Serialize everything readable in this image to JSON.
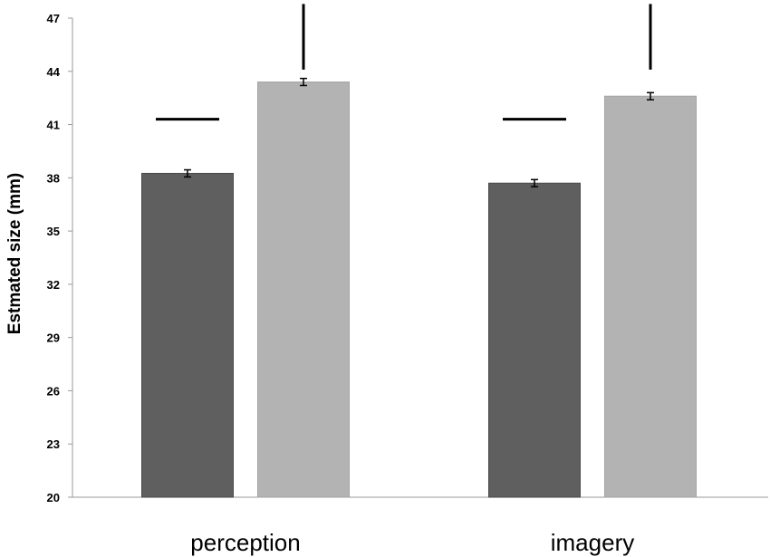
{
  "chart_data": {
    "type": "bar",
    "title": "",
    "xlabel": "",
    "ylabel": "Estmated size (mm)",
    "ylim": [
      20,
      47
    ],
    "yticks": [
      20,
      23,
      26,
      29,
      32,
      35,
      38,
      41,
      44,
      47
    ],
    "categories": [
      "perception",
      "imagery"
    ],
    "series": [
      {
        "values": [
          38.25,
          37.7
        ],
        "errors": [
          0.2,
          0.2
        ],
        "color": "#5f5f5f"
      },
      {
        "values": [
          43.4,
          42.6
        ],
        "errors": [
          0.2,
          0.2
        ],
        "color": "#b3b3b3"
      }
    ],
    "grid": false,
    "legend": "none",
    "annotations": [
      {
        "type": "horizontal-line",
        "category": "perception",
        "level": 41.3
      },
      {
        "type": "vertical-line",
        "category": "perception",
        "from": 44.1,
        "to": 47.8
      },
      {
        "type": "horizontal-line",
        "category": "imagery",
        "level": 41.3
      },
      {
        "type": "vertical-line",
        "category": "imagery",
        "from": 44.1,
        "to": 47.8
      }
    ]
  }
}
